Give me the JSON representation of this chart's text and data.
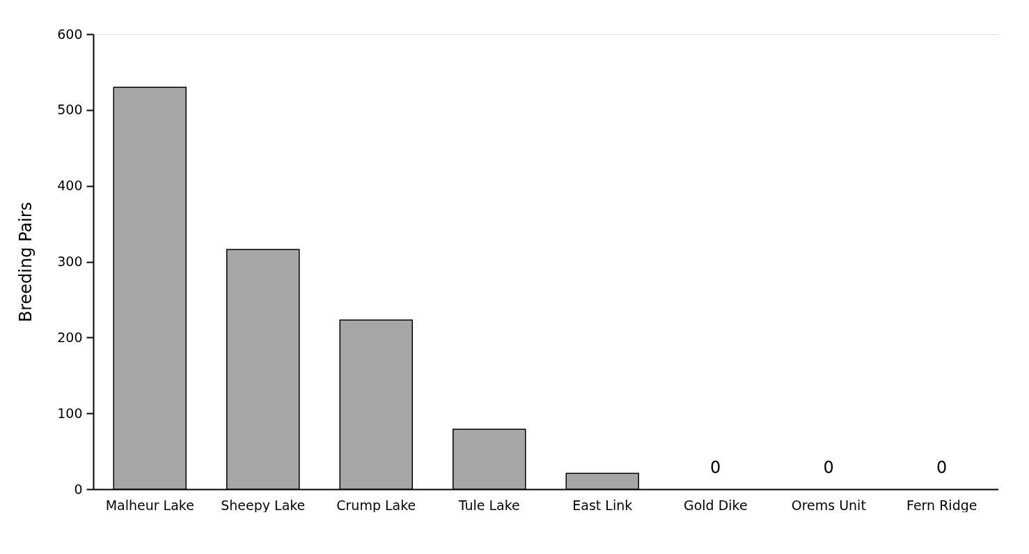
{
  "chart_data": {
    "type": "bar",
    "ylabel": "Breeding Pairs",
    "categories": [
      "Malheur Lake",
      "Sheepy Lake",
      "Crump Lake",
      "Tule Lake",
      "East Link",
      "Gold Dike",
      "Orems Unit",
      "Fern Ridge"
    ],
    "values": [
      530,
      316,
      223,
      79,
      21,
      0,
      0,
      0
    ],
    "value_labels": [
      null,
      null,
      null,
      null,
      null,
      "0",
      "0",
      "0"
    ],
    "color": "#a6a6a6",
    "ylim": [
      0,
      600
    ],
    "yticks": [
      0,
      100,
      200,
      300,
      400,
      500,
      600
    ],
    "grid": false
  }
}
